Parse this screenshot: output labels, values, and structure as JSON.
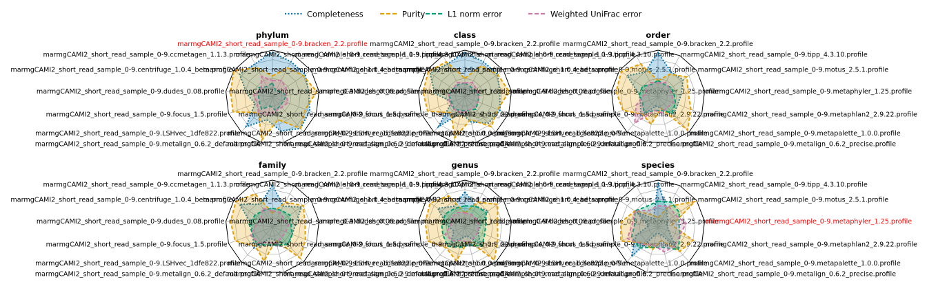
{
  "chart_data": {
    "type": "radar",
    "legend": [
      {
        "name": "Completeness",
        "color": "#0072b2",
        "dash": "dotted"
      },
      {
        "name": "Purity",
        "color": "#e69f00",
        "dash": "dashed"
      },
      {
        "name": "L1 norm error",
        "color": "#009e73",
        "dash": "dashed"
      },
      {
        "name": "Weighted UniFrac error",
        "color": "#cc79a7",
        "dash": "dashed"
      }
    ],
    "legend_position": "top-center",
    "axes": [
      "marmgCAMI2_short_read_sample_0-9.bracken_2.2.profile",
      "marmgCAMI2_short_read_sample_0-9.tipp_4.3.10.profile",
      "marmgCAMI2_short_read_sample_0-9.motus_2.5.1.profile",
      "marmgCAMI2_short_read_sample_0-9.metaphyler_1.25.profile",
      "marmgCAMI2_short_read_sample_0-9.metaphlan2_2.9.22.profile",
      "marmgCAMI2_short_read_sample_0-9.metapalette_1.0.0.profile",
      "marmgCAMI2_short_read_sample_0-9.metalign_0.6.2_precise.profile",
      "marmgCAMI2_short_read_sample_0-9.metalign_0.6.2_default.profile",
      "marmgCAMI2_short_read_sample_0-9.LSHvec_1dfe822.profile",
      "marmgCAMI2_short_read_sample_0-9.focus_1.5.profile",
      "marmgCAMI2_short_read_sample_0-9.dudes_0.08.profile",
      "marmgCAMI2_short_read_sample_0-9.centrifuge_1.0.4_beta.profile",
      "marmgCAMI2_short_read_sample_0-9.ccmetagen_1.1.3.profile"
    ],
    "radial_range": [
      0,
      1
    ],
    "grid": true,
    "panels": [
      {
        "title": "phylum",
        "highlight_axis": 0,
        "series": {
          "Completeness": [
            0.96,
            0.85,
            0.85,
            0.78,
            0.85,
            0.9,
            0.75,
            0.5,
            0.85,
            0.4,
            0.55,
            0.85,
            0.8
          ],
          "Purity": [
            0.45,
            0.7,
            0.8,
            0.95,
            0.75,
            0.9,
            0.5,
            0.95,
            0.45,
            0.9,
            0.9,
            1.0,
            0.7
          ],
          "L1 norm error": [
            0.3,
            0.15,
            0.2,
            0.3,
            0.25,
            0.25,
            0.3,
            0.2,
            0.35,
            0.3,
            0.3,
            0.35,
            0.25
          ],
          "Weighted UniFrac error": [
            0.35,
            0.4,
            0.35,
            0.3,
            0.35,
            0.3,
            0.3,
            0.4,
            0.45,
            0.35,
            0.4,
            0.3,
            0.5
          ]
        }
      },
      {
        "title": "class",
        "highlight_axis": -1,
        "series": {
          "Completeness": [
            0.95,
            0.85,
            0.85,
            0.75,
            0.8,
            0.75,
            0.55,
            0.35,
            0.85,
            0.3,
            0.65,
            0.9,
            0.8
          ],
          "Purity": [
            0.4,
            0.75,
            0.85,
            0.95,
            0.75,
            0.85,
            0.5,
            0.9,
            0.45,
            0.85,
            0.9,
            0.95,
            0.85
          ],
          "L1 norm error": [
            0.3,
            0.25,
            0.25,
            0.3,
            0.3,
            0.35,
            0.3,
            0.3,
            0.35,
            0.3,
            0.35,
            0.3,
            0.3
          ],
          "Weighted UniFrac error": [
            0.3,
            0.35,
            0.3,
            0.3,
            0.3,
            0.3,
            0.3,
            0.35,
            0.35,
            0.35,
            0.35,
            0.3,
            0.35
          ]
        }
      },
      {
        "title": "order",
        "highlight_axis": -1,
        "series": {
          "Completeness": [
            0.95,
            0.6,
            0.65,
            0.5,
            0.45,
            0.5,
            0.25,
            0.2,
            0.55,
            0.4,
            0.4,
            0.8,
            0.6
          ],
          "Purity": [
            0.35,
            0.55,
            0.75,
            0.65,
            0.75,
            0.95,
            0.25,
            0.6,
            0.5,
            0.8,
            0.9,
            0.95,
            0.8
          ],
          "L1 norm error": [
            0.35,
            0.3,
            0.35,
            0.35,
            0.4,
            0.45,
            0.3,
            0.3,
            0.45,
            0.35,
            0.4,
            0.4,
            0.3
          ],
          "Weighted UniFrac error": [
            0.3,
            0.35,
            0.3,
            0.3,
            0.35,
            0.3,
            0.35,
            0.3,
            0.75,
            0.5,
            0.3,
            0.3,
            0.35
          ]
        }
      },
      {
        "title": "family",
        "highlight_axis": -1,
        "series": {
          "Completeness": [
            0.9,
            0.5,
            0.75,
            0.5,
            0.45,
            0.5,
            0.3,
            0.25,
            0.6,
            0.45,
            0.45,
            0.85,
            0.55
          ],
          "Purity": [
            0.3,
            0.6,
            0.8,
            0.7,
            0.75,
            0.9,
            0.3,
            0.75,
            0.55,
            0.85,
            0.9,
            0.95,
            0.8
          ],
          "L1 norm error": [
            0.4,
            0.4,
            0.45,
            0.4,
            0.45,
            0.5,
            0.4,
            0.4,
            0.5,
            0.45,
            0.5,
            0.45,
            0.4
          ],
          "Weighted UniFrac error": [
            0.35,
            0.35,
            0.3,
            0.35,
            0.3,
            0.3,
            0.35,
            0.35,
            0.45,
            0.5,
            0.35,
            0.3,
            0.45
          ]
        }
      },
      {
        "title": "genus",
        "highlight_axis": -1,
        "series": {
          "Completeness": [
            0.75,
            0.5,
            0.6,
            0.35,
            0.3,
            0.5,
            0.2,
            0.25,
            0.45,
            0.25,
            0.4,
            0.7,
            0.5
          ],
          "Purity": [
            0.3,
            0.6,
            0.85,
            0.7,
            0.75,
            0.95,
            0.3,
            0.75,
            0.6,
            0.85,
            0.85,
            0.9,
            0.75
          ],
          "L1 norm error": [
            0.45,
            0.5,
            0.55,
            0.45,
            0.45,
            0.55,
            0.4,
            0.45,
            0.55,
            0.5,
            0.5,
            0.5,
            0.45
          ],
          "Weighted UniFrac error": [
            0.3,
            0.3,
            0.3,
            0.3,
            0.3,
            0.3,
            0.35,
            0.3,
            0.4,
            0.45,
            0.3,
            0.35,
            0.35
          ]
        }
      },
      {
        "title": "species",
        "highlight_axis": 3,
        "series": {
          "Completeness": [
            0.95,
            0.4,
            0.25,
            0.2,
            0.25,
            0.55,
            0.15,
            0.15,
            0.85,
            0.5,
            0.2,
            0.55,
            0.2
          ],
          "Purity": [
            0.2,
            0.5,
            0.95,
            0.3,
            0.8,
            0.7,
            0.3,
            0.5,
            0.45,
            0.85,
            0.8,
            0.6,
            0.3
          ],
          "L1 norm error": [
            0.55,
            0.6,
            0.55,
            0.45,
            0.5,
            0.65,
            0.45,
            0.45,
            0.6,
            0.6,
            0.5,
            0.6,
            0.5
          ],
          "Weighted UniFrac error": [
            0.45,
            0.5,
            0.45,
            0.6,
            0.5,
            0.55,
            0.55,
            0.4,
            0.5,
            0.7,
            0.55,
            0.6,
            0.4
          ]
        }
      }
    ]
  }
}
